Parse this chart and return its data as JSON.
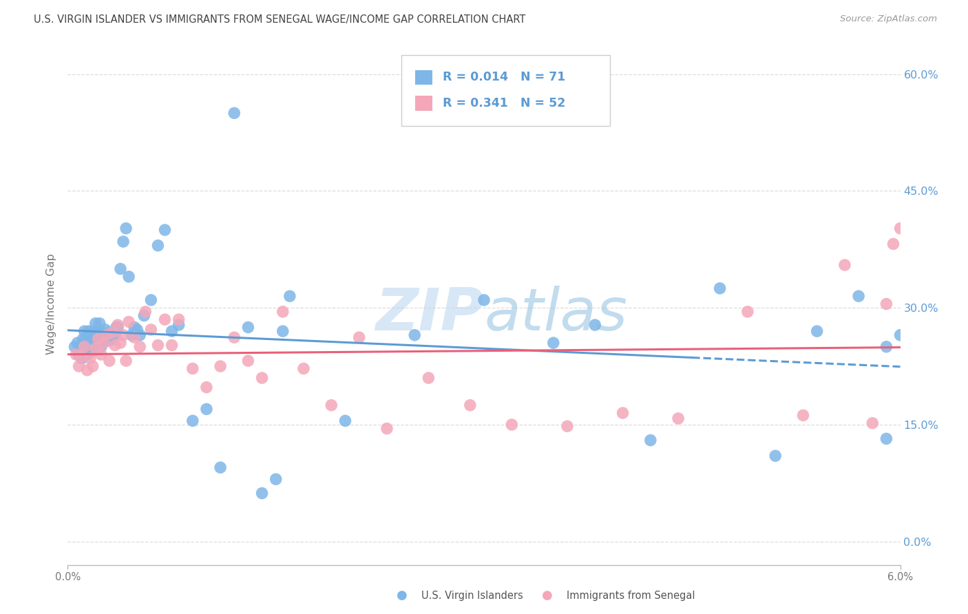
{
  "title": "U.S. VIRGIN ISLANDER VS IMMIGRANTS FROM SENEGAL WAGE/INCOME GAP CORRELATION CHART",
  "source": "Source: ZipAtlas.com",
  "ylabel": "Wage/Income Gap",
  "ytick_labels": [
    "0.0%",
    "15.0%",
    "30.0%",
    "45.0%",
    "60.0%"
  ],
  "ytick_vals": [
    0.0,
    0.15,
    0.3,
    0.45,
    0.6
  ],
  "xmin": 0.0,
  "xmax": 0.06,
  "ymin": -0.03,
  "ymax": 0.64,
  "legend1_r": "0.014",
  "legend1_n": "71",
  "legend2_r": "0.341",
  "legend2_n": "52",
  "legend_label1": "U.S. Virgin Islanders",
  "legend_label2": "Immigrants from Senegal",
  "color_blue": "#7EB6E8",
  "color_pink": "#F4A7B9",
  "line_blue": "#5B9BD5",
  "line_pink": "#E8607A",
  "text_color": "#5B9BD5",
  "axis_text_color": "#777777",
  "grid_color": "#DDDDDD",
  "blue_x": [
    0.0005,
    0.0007,
    0.0008,
    0.001,
    0.001,
    0.0011,
    0.0012,
    0.0012,
    0.0013,
    0.0013,
    0.0014,
    0.0015,
    0.0015,
    0.0016,
    0.0016,
    0.0017,
    0.0018,
    0.0018,
    0.0019,
    0.002,
    0.002,
    0.0021,
    0.0022,
    0.0023,
    0.0024,
    0.0025,
    0.0026,
    0.0027,
    0.0028,
    0.003,
    0.003,
    0.0032,
    0.0034,
    0.0035,
    0.0036,
    0.0038,
    0.004,
    0.0042,
    0.0044,
    0.0046,
    0.0048,
    0.005,
    0.0052,
    0.0055,
    0.006,
    0.0065,
    0.007,
    0.0075,
    0.008,
    0.009,
    0.01,
    0.011,
    0.012,
    0.013,
    0.014,
    0.015,
    0.016,
    0.0155,
    0.02,
    0.025,
    0.03,
    0.035,
    0.038,
    0.042,
    0.047,
    0.051,
    0.054,
    0.057,
    0.059,
    0.06,
    0.059
  ],
  "blue_y": [
    0.25,
    0.255,
    0.24,
    0.235,
    0.245,
    0.26,
    0.25,
    0.27,
    0.245,
    0.26,
    0.24,
    0.255,
    0.27,
    0.25,
    0.265,
    0.255,
    0.26,
    0.27,
    0.245,
    0.265,
    0.28,
    0.26,
    0.27,
    0.28,
    0.25,
    0.268,
    0.258,
    0.272,
    0.265,
    0.258,
    0.268,
    0.26,
    0.265,
    0.275,
    0.275,
    0.35,
    0.385,
    0.402,
    0.34,
    0.265,
    0.275,
    0.272,
    0.265,
    0.29,
    0.31,
    0.38,
    0.4,
    0.27,
    0.278,
    0.155,
    0.17,
    0.095,
    0.55,
    0.275,
    0.062,
    0.08,
    0.315,
    0.27,
    0.155,
    0.265,
    0.31,
    0.255,
    0.278,
    0.13,
    0.325,
    0.11,
    0.27,
    0.315,
    0.25,
    0.265,
    0.132
  ],
  "pink_x": [
    0.0006,
    0.0008,
    0.001,
    0.0012,
    0.0014,
    0.0016,
    0.0018,
    0.002,
    0.0022,
    0.0024,
    0.0026,
    0.0028,
    0.003,
    0.0032,
    0.0034,
    0.0036,
    0.0038,
    0.004,
    0.0042,
    0.0044,
    0.0048,
    0.0052,
    0.0056,
    0.006,
    0.0065,
    0.007,
    0.0075,
    0.008,
    0.009,
    0.01,
    0.011,
    0.012,
    0.013,
    0.014,
    0.0155,
    0.017,
    0.019,
    0.021,
    0.023,
    0.026,
    0.029,
    0.032,
    0.036,
    0.04,
    0.044,
    0.049,
    0.053,
    0.056,
    0.058,
    0.059,
    0.0595,
    0.06
  ],
  "pink_y": [
    0.24,
    0.225,
    0.238,
    0.25,
    0.22,
    0.235,
    0.225,
    0.248,
    0.26,
    0.24,
    0.255,
    0.265,
    0.232,
    0.268,
    0.252,
    0.278,
    0.255,
    0.265,
    0.232,
    0.282,
    0.262,
    0.25,
    0.295,
    0.272,
    0.252,
    0.285,
    0.252,
    0.285,
    0.222,
    0.198,
    0.225,
    0.262,
    0.232,
    0.21,
    0.295,
    0.222,
    0.175,
    0.262,
    0.145,
    0.21,
    0.175,
    0.15,
    0.148,
    0.165,
    0.158,
    0.295,
    0.162,
    0.355,
    0.152,
    0.305,
    0.382,
    0.402
  ]
}
